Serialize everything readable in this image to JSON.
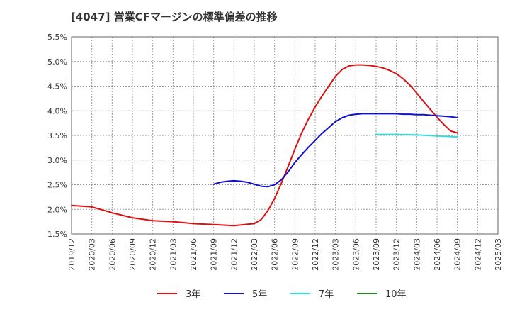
{
  "chart_data": {
    "type": "line",
    "title": "[4047]  営業CFマージンの標準偏差の推移",
    "xlabel": "",
    "ylabel": "",
    "grid": true,
    "legend_placement": "bottom",
    "ylim": [
      1.5,
      5.5
    ],
    "y_ticks": [
      "1.5%",
      "2.0%",
      "2.5%",
      "3.0%",
      "3.5%",
      "4.0%",
      "4.5%",
      "5.0%",
      "5.5%"
    ],
    "x_ticks": [
      "2019/12",
      "2020/03",
      "2020/06",
      "2020/09",
      "2020/12",
      "2021/03",
      "2021/06",
      "2021/09",
      "2021/12",
      "2022/03",
      "2022/06",
      "2022/09",
      "2022/12",
      "2023/03",
      "2023/06",
      "2023/09",
      "2023/12",
      "2024/03",
      "2024/06",
      "2024/09",
      "2024/12",
      "2025/03"
    ],
    "series": [
      {
        "name": "3年",
        "color": "#dd1111",
        "x": [
          "2019/12",
          "2020/03",
          "2020/06",
          "2020/09",
          "2020/12",
          "2021/03",
          "2021/06",
          "2021/09",
          "2021/12",
          "2022/03",
          "2022/04",
          "2022/05",
          "2022/06",
          "2022/07",
          "2022/08",
          "2022/09",
          "2022/10",
          "2022/11",
          "2022/12",
          "2023/01",
          "2023/02",
          "2023/03",
          "2023/04",
          "2023/05",
          "2023/06",
          "2023/07",
          "2023/08",
          "2023/09",
          "2023/10",
          "2023/11",
          "2023/12",
          "2024/01",
          "2024/02",
          "2024/03",
          "2024/04",
          "2024/05",
          "2024/06",
          "2024/07",
          "2024/08",
          "2024/09"
        ],
        "values": [
          2.08,
          2.05,
          1.93,
          1.83,
          1.77,
          1.75,
          1.71,
          1.69,
          1.67,
          1.71,
          1.79,
          1.97,
          2.22,
          2.53,
          2.87,
          3.22,
          3.55,
          3.83,
          4.08,
          4.3,
          4.5,
          4.7,
          4.84,
          4.91,
          4.93,
          4.93,
          4.92,
          4.9,
          4.87,
          4.82,
          4.75,
          4.65,
          4.52,
          4.36,
          4.19,
          4.03,
          3.87,
          3.72,
          3.59,
          3.55
        ]
      },
      {
        "name": "5年",
        "color": "#1111cc",
        "x": [
          "2021/09",
          "2021/10",
          "2021/11",
          "2021/12",
          "2022/01",
          "2022/02",
          "2022/03",
          "2022/04",
          "2022/05",
          "2022/06",
          "2022/07",
          "2022/08",
          "2022/09",
          "2022/10",
          "2022/11",
          "2022/12",
          "2023/01",
          "2023/02",
          "2023/03",
          "2023/04",
          "2023/05",
          "2023/06",
          "2023/07",
          "2023/08",
          "2023/09",
          "2023/10",
          "2023/11",
          "2023/12",
          "2024/01",
          "2024/02",
          "2024/03",
          "2024/04",
          "2024/05",
          "2024/06",
          "2024/07",
          "2024/08",
          "2024/09"
        ],
        "values": [
          2.51,
          2.55,
          2.57,
          2.58,
          2.57,
          2.55,
          2.51,
          2.47,
          2.46,
          2.5,
          2.6,
          2.76,
          2.95,
          3.11,
          3.26,
          3.4,
          3.54,
          3.66,
          3.78,
          3.86,
          3.91,
          3.93,
          3.94,
          3.94,
          3.94,
          3.94,
          3.94,
          3.94,
          3.93,
          3.93,
          3.92,
          3.92,
          3.91,
          3.9,
          3.89,
          3.88,
          3.86
        ]
      },
      {
        "name": "7年",
        "color": "#33dddd",
        "x": [
          "2023/09",
          "2023/12",
          "2024/03",
          "2024/06",
          "2024/09"
        ],
        "values": [
          3.52,
          3.52,
          3.51,
          3.49,
          3.47
        ]
      },
      {
        "name": "10年",
        "color": "#228822",
        "x": [],
        "values": []
      }
    ]
  }
}
